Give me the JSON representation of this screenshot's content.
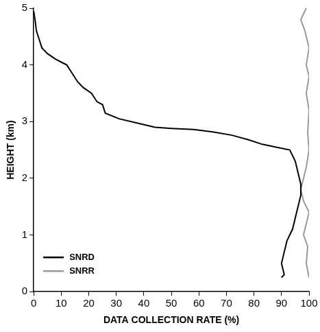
{
  "chart_data": {
    "type": "line",
    "x_label": "DATA COLLECTION RATE (%)",
    "y_label": "HEIGHT (km)",
    "xlim": [
      0,
      100
    ],
    "xticks": [
      0,
      10,
      20,
      30,
      40,
      50,
      60,
      70,
      80,
      90,
      100
    ],
    "ylim": [
      0,
      5
    ],
    "yticks": [
      0,
      1,
      2,
      3,
      4,
      5
    ],
    "grid": false,
    "legend": "lower left",
    "series": [
      {
        "name": "SNRD",
        "color": "#000000",
        "line_style": "solid",
        "marker": "none",
        "x": [
          90,
          91,
          90,
          91,
          92,
          93,
          94,
          95,
          96,
          97,
          97,
          96,
          95,
          93,
          88,
          83,
          78,
          72,
          65,
          58,
          50,
          44,
          38,
          31,
          26,
          25,
          23,
          21,
          18,
          16,
          14,
          12,
          10,
          8,
          5,
          3,
          2,
          1,
          0.5,
          0
        ],
        "values": [
          0.25,
          0.3,
          0.5,
          0.7,
          0.9,
          1.0,
          1.1,
          1.3,
          1.5,
          1.7,
          1.9,
          2.1,
          2.3,
          2.5,
          2.55,
          2.6,
          2.68,
          2.76,
          2.82,
          2.86,
          2.88,
          2.9,
          2.97,
          3.05,
          3.15,
          3.3,
          3.35,
          3.5,
          3.6,
          3.7,
          3.85,
          4.0,
          4.05,
          4.1,
          4.2,
          4.3,
          4.45,
          4.6,
          4.8,
          4.95
        ]
      },
      {
        "name": "SNRR",
        "color": "#999999",
        "line_style": "solid",
        "marker": "none",
        "x": [
          100,
          99,
          99.5,
          98,
          99,
          100,
          98,
          97,
          98,
          99,
          100,
          99.5,
          100,
          99,
          100,
          99,
          100,
          98.5,
          97,
          98,
          99
        ],
        "values": [
          0.25,
          0.5,
          0.8,
          1.0,
          1.2,
          1.4,
          1.6,
          1.8,
          2.0,
          2.2,
          2.5,
          2.8,
          3.2,
          3.5,
          3.8,
          4.0,
          4.3,
          4.6,
          4.8,
          4.9,
          5.0
        ]
      }
    ]
  }
}
